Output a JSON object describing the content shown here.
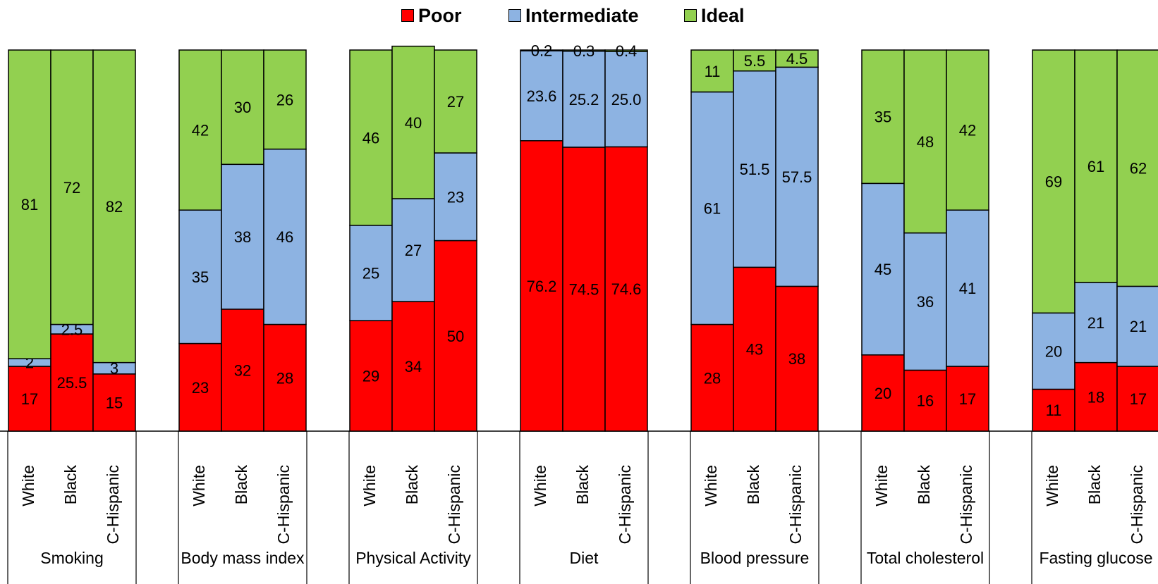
{
  "legend": {
    "poor": "Poor",
    "intermediate": "Intermediate",
    "ideal": "Ideal"
  },
  "colors": {
    "poor": "#ff0000",
    "intermediate": "#8db3e2",
    "ideal": "#92d050"
  },
  "chart_data": {
    "type": "bar",
    "stacked": true,
    "normalized_to_100": true,
    "ylim": [
      0,
      100
    ],
    "legend_position": "top",
    "series_order": [
      "Poor",
      "Intermediate",
      "Ideal"
    ],
    "groups": [
      {
        "name": "Smoking",
        "categories": [
          "White",
          "Black",
          "C-Hispanic"
        ],
        "series": [
          {
            "name": "Poor",
            "values": [
              17,
              25.5,
              15
            ],
            "labels": [
              "17",
              "25.5",
              "15"
            ]
          },
          {
            "name": "Intermediate",
            "values": [
              2,
              2.5,
              3
            ],
            "labels": [
              "2",
              "2.5",
              "3"
            ]
          },
          {
            "name": "Ideal",
            "values": [
              81,
              72,
              82
            ],
            "labels": [
              "81",
              "72",
              "82"
            ]
          }
        ]
      },
      {
        "name": "Body mass index",
        "categories": [
          "White",
          "Black",
          "C-Hispanic"
        ],
        "series": [
          {
            "name": "Poor",
            "values": [
              23,
              32,
              28
            ],
            "labels": [
              "23",
              "32",
              "28"
            ]
          },
          {
            "name": "Intermediate",
            "values": [
              35,
              38,
              46
            ],
            "labels": [
              "35",
              "38",
              "46"
            ]
          },
          {
            "name": "Ideal",
            "values": [
              42,
              30,
              26
            ],
            "labels": [
              "42",
              "30",
              "26"
            ]
          }
        ]
      },
      {
        "name": "Physical Activity",
        "categories": [
          "White",
          "Black",
          "C-Hispanic"
        ],
        "series": [
          {
            "name": "Poor",
            "values": [
              29,
              34,
              50
            ],
            "labels": [
              "29",
              "34",
              "50"
            ]
          },
          {
            "name": "Intermediate",
            "values": [
              25,
              27,
              23
            ],
            "labels": [
              "25",
              "27",
              "23"
            ]
          },
          {
            "name": "Ideal",
            "values": [
              46,
              40,
              27
            ],
            "labels": [
              "46",
              "40",
              "27"
            ]
          }
        ]
      },
      {
        "name": "Diet",
        "categories": [
          "White",
          "Black",
          "C-Hispanic"
        ],
        "series": [
          {
            "name": "Poor",
            "values": [
              76.2,
              74.5,
              74.6
            ],
            "labels": [
              "76.2",
              "74.5",
              "74.6"
            ]
          },
          {
            "name": "Intermediate",
            "values": [
              23.6,
              25.2,
              25.0
            ],
            "labels": [
              "23.6",
              "25.2",
              "25.0"
            ]
          },
          {
            "name": "Ideal",
            "values": [
              0.2,
              0.3,
              0.4
            ],
            "labels": [
              "0.2",
              "0.3",
              "0.4"
            ]
          }
        ]
      },
      {
        "name": "Blood pressure",
        "categories": [
          "White",
          "Black",
          "C-Hispanic"
        ],
        "series": [
          {
            "name": "Poor",
            "values": [
              28,
              43,
              38
            ],
            "labels": [
              "28",
              "43",
              "38"
            ]
          },
          {
            "name": "Intermediate",
            "values": [
              61,
              51.5,
              57.5
            ],
            "labels": [
              "61",
              "51.5",
              "57.5"
            ]
          },
          {
            "name": "Ideal",
            "values": [
              11,
              5.5,
              4.5
            ],
            "labels": [
              "11",
              "5.5",
              "4.5"
            ]
          }
        ]
      },
      {
        "name": "Total cholesterol",
        "categories": [
          "White",
          "Black",
          "C-Hispanic"
        ],
        "series": [
          {
            "name": "Poor",
            "values": [
              20,
              16,
              17
            ],
            "labels": [
              "20",
              "16",
              "17"
            ]
          },
          {
            "name": "Intermediate",
            "values": [
              45,
              36,
              41
            ],
            "labels": [
              "45",
              "36",
              "41"
            ]
          },
          {
            "name": "Ideal",
            "values": [
              35,
              48,
              42
            ],
            "labels": [
              "35",
              "48",
              "42"
            ]
          }
        ]
      },
      {
        "name": "Fasting glucose",
        "categories": [
          "White",
          "Black",
          "C-Hispanic"
        ],
        "series": [
          {
            "name": "Poor",
            "values": [
              11,
              18,
              17
            ],
            "labels": [
              "11",
              "18",
              "17"
            ]
          },
          {
            "name": "Intermediate",
            "values": [
              20,
              21,
              21
            ],
            "labels": [
              "20",
              "21",
              "21"
            ]
          },
          {
            "name": "Ideal",
            "values": [
              69,
              61,
              62
            ],
            "labels": [
              "69",
              "61",
              "62"
            ]
          }
        ]
      }
    ]
  }
}
